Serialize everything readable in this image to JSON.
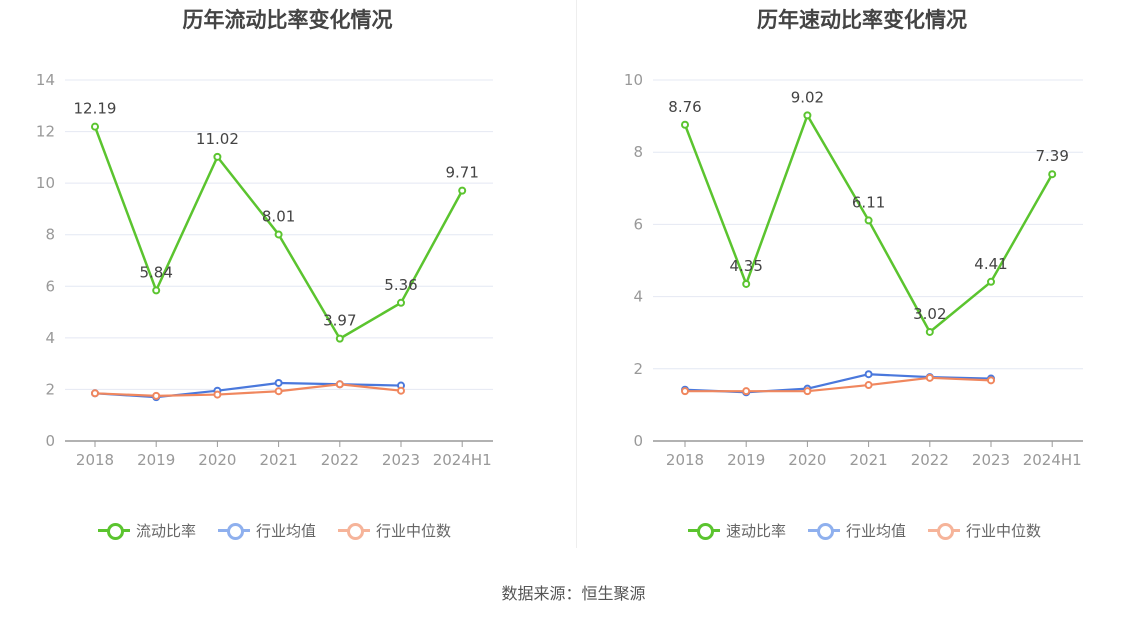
{
  "colors": {
    "main": "#5bc42f",
    "avg": "#4a78dc",
    "median": "#f0875e",
    "grid": "#e4e8f3",
    "axis": "#999999"
  },
  "source": "数据来源：恒生聚源",
  "chart_data": [
    {
      "type": "line",
      "title": "历年流动比率变化情况",
      "categories": [
        "2018",
        "2019",
        "2020",
        "2021",
        "2022",
        "2023",
        "2024H1"
      ],
      "ylim": [
        0,
        14
      ],
      "yticks": [
        0,
        2,
        4,
        6,
        8,
        10,
        12,
        14
      ],
      "grid": true,
      "legend_position": "bottom",
      "series": [
        {
          "name": "流动比率",
          "key": "main",
          "values": [
            12.19,
            5.84,
            11.02,
            8.01,
            3.97,
            5.36,
            9.71
          ],
          "labels": [
            "12.19",
            "5.84",
            "11.02",
            "8.01",
            "3.97",
            "5.36",
            "9.71"
          ]
        },
        {
          "name": "行业均值",
          "key": "avg",
          "values": [
            1.85,
            1.7,
            1.95,
            2.25,
            2.2,
            2.15,
            null
          ]
        },
        {
          "name": "行业中位数",
          "key": "median",
          "values": [
            1.85,
            1.75,
            1.8,
            1.93,
            2.2,
            1.95,
            null
          ]
        }
      ]
    },
    {
      "type": "line",
      "title": "历年速动比率变化情况",
      "categories": [
        "2018",
        "2019",
        "2020",
        "2021",
        "2022",
        "2023",
        "2024H1"
      ],
      "ylim": [
        0,
        10
      ],
      "yticks": [
        0,
        2,
        4,
        6,
        8,
        10
      ],
      "grid": true,
      "legend_position": "bottom",
      "series": [
        {
          "name": "速动比率",
          "key": "main",
          "values": [
            8.76,
            4.35,
            9.02,
            6.11,
            3.02,
            4.41,
            7.39
          ],
          "labels": [
            "8.76",
            "4.35",
            "9.02",
            "6.11",
            "3.02",
            "4.41",
            "7.39"
          ]
        },
        {
          "name": "行业均值",
          "key": "avg",
          "values": [
            1.42,
            1.35,
            1.45,
            1.85,
            1.77,
            1.73,
            null
          ]
        },
        {
          "name": "行业中位数",
          "key": "median",
          "values": [
            1.38,
            1.38,
            1.38,
            1.55,
            1.75,
            1.68,
            null
          ]
        }
      ]
    }
  ]
}
